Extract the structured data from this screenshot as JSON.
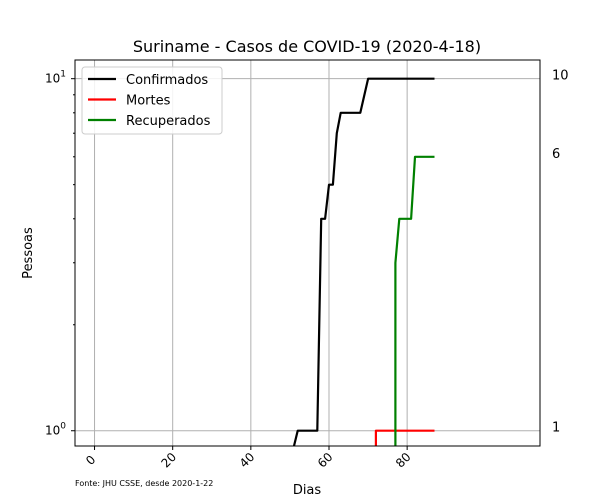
{
  "chart_data": {
    "type": "line",
    "title": "Suriname - Casos de COVID-19 (2020-4-18)",
    "xlabel": "Dias",
    "ylabel": "Pessoas",
    "y_scale": "log",
    "xlim": [
      -5,
      114
    ],
    "ylim": [
      0.905,
      11.3
    ],
    "x_ticks": [
      "0",
      "20",
      "40",
      "60",
      "80"
    ],
    "x_tick_values": [
      0,
      20,
      40,
      60,
      80
    ],
    "y_ticks": [
      {
        "value": 1,
        "base": "10",
        "exp": "0"
      },
      {
        "value": 10,
        "base": "10",
        "exp": "1"
      }
    ],
    "right_labels": [
      {
        "value": 10,
        "text": "10"
      },
      {
        "value": 6,
        "text": "6"
      },
      {
        "value": 1,
        "text": "1"
      }
    ],
    "grid": true,
    "legend_position": "top-left",
    "series": [
      {
        "name": "Confirmados",
        "color": "#000000",
        "points": [
          [
            51,
            0.9
          ],
          [
            52,
            1
          ],
          [
            57,
            1
          ],
          [
            58,
            4
          ],
          [
            59,
            4
          ],
          [
            60,
            5
          ],
          [
            61,
            5
          ],
          [
            62,
            7
          ],
          [
            63,
            8
          ],
          [
            68,
            8
          ],
          [
            70,
            10
          ],
          [
            87,
            10
          ]
        ]
      },
      {
        "name": "Mortes",
        "color": "#ff0000",
        "points": [
          [
            72,
            0.9
          ],
          [
            72,
            1
          ],
          [
            87,
            1
          ]
        ]
      },
      {
        "name": "Recuperados",
        "color": "#008000",
        "points": [
          [
            77,
            0.9
          ],
          [
            77,
            3
          ],
          [
            78,
            4
          ],
          [
            81,
            4
          ],
          [
            82,
            6
          ],
          [
            87,
            6
          ]
        ]
      }
    ],
    "source_note": "Fonte: JHU CSSE, desde 2020-1-22"
  }
}
